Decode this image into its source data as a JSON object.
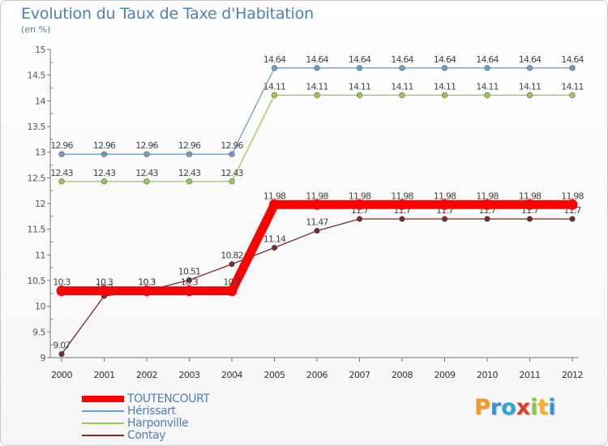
{
  "chart_data": {
    "type": "line",
    "title": "Evolution du Taux de Taxe d'Habitation",
    "subtitle": "(en %)",
    "xlabel": "",
    "ylabel": "",
    "x": [
      "2000",
      "2001",
      "2002",
      "2003",
      "2004",
      "2005",
      "2006",
      "2007",
      "2008",
      "2009",
      "2010",
      "2011",
      "2012"
    ],
    "ylim": [
      9,
      15
    ],
    "yticks": [
      "9",
      "9.5",
      "10",
      "10.5",
      "11",
      "11.5",
      "12",
      "12.5",
      "13",
      "13.5",
      "14",
      "14.5",
      "15"
    ],
    "grid": false,
    "legend_position": "bottom-left",
    "series": [
      {
        "name": "TOUTENCOURT",
        "color": "#ff0000",
        "values": [
          10.3,
          10.3,
          10.3,
          10.3,
          10.3,
          11.98,
          11.98,
          11.98,
          11.98,
          11.98,
          11.98,
          11.98,
          11.98
        ],
        "labels": [
          "10.3",
          "10.3",
          "10.3",
          "10.3",
          "10.3",
          "11.98",
          "11.98",
          "11.98",
          "11.98",
          "11.98",
          "11.98",
          "11.98",
          "11.98"
        ]
      },
      {
        "name": "Hérissart",
        "color": "#6a9fd4",
        "values": [
          12.96,
          12.96,
          12.96,
          12.96,
          12.96,
          14.64,
          14.64,
          14.64,
          14.64,
          14.64,
          14.64,
          14.64,
          14.64
        ],
        "labels": [
          "12.96",
          "12.96",
          "12.96",
          "12.96",
          "12.96",
          "14.64",
          "14.64",
          "14.64",
          "14.64",
          "14.64",
          "14.64",
          "14.64",
          "14.64"
        ]
      },
      {
        "name": "Harponville",
        "color": "#8fd24a",
        "values": [
          12.43,
          12.43,
          12.43,
          12.43,
          12.43,
          14.11,
          14.11,
          14.11,
          14.11,
          14.11,
          14.11,
          14.11,
          14.11
        ],
        "labels": [
          "12.43",
          "12.43",
          "12.43",
          "12.43",
          "12.43",
          "14.11",
          "14.11",
          "14.11",
          "14.11",
          "14.11",
          "14.11",
          "14.11",
          "14.11"
        ]
      },
      {
        "name": "Contay",
        "color": "#7a2a2a",
        "values": [
          9.07,
          10.2,
          10.3,
          10.51,
          10.82,
          11.14,
          11.47,
          11.7,
          11.7,
          11.7,
          11.7,
          11.7,
          11.7
        ],
        "labels": [
          "9.07",
          "10.2",
          "10.3",
          "10.51",
          "10.82",
          "11.14",
          "11.47",
          "11.7",
          "11.7",
          "11.7",
          "11.7",
          "11.7",
          "11.7"
        ]
      }
    ]
  },
  "logo": {
    "letters": [
      {
        "ch": "P",
        "color": "#f39a1e"
      },
      {
        "ch": "r",
        "color": "#3b8fd6"
      },
      {
        "ch": "o",
        "color": "#2aa7de"
      },
      {
        "ch": "x",
        "color": "#e23a2a"
      },
      {
        "ch": "i",
        "color": "#8cc63f"
      },
      {
        "ch": "t",
        "color": "#f2b51b"
      },
      {
        "ch": "i",
        "color": "#3b8fd6"
      }
    ]
  }
}
